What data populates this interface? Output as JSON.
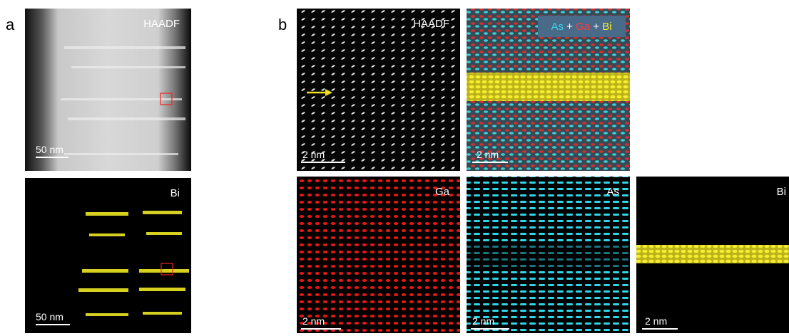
{
  "panels": [
    {
      "label": "a",
      "images": [
        {
          "label": "HAADF",
          "scale_bar": "50 nm"
        },
        {
          "label": "Bi",
          "scale_bar": "50 nm"
        }
      ]
    },
    {
      "label": "b",
      "images": [
        {
          "label": "HAADF",
          "scale_bar": "2 nm"
        },
        {
          "label_parts": [
            "As",
            "+",
            "Ga",
            "+",
            "Bi"
          ],
          "scale_bar": "2 nm"
        },
        {
          "label": "Ga",
          "scale_bar": "2 nm"
        },
        {
          "label": "As",
          "scale_bar": "2 nm"
        },
        {
          "label": "Bi",
          "scale_bar": "2 nm"
        }
      ]
    }
  ]
}
